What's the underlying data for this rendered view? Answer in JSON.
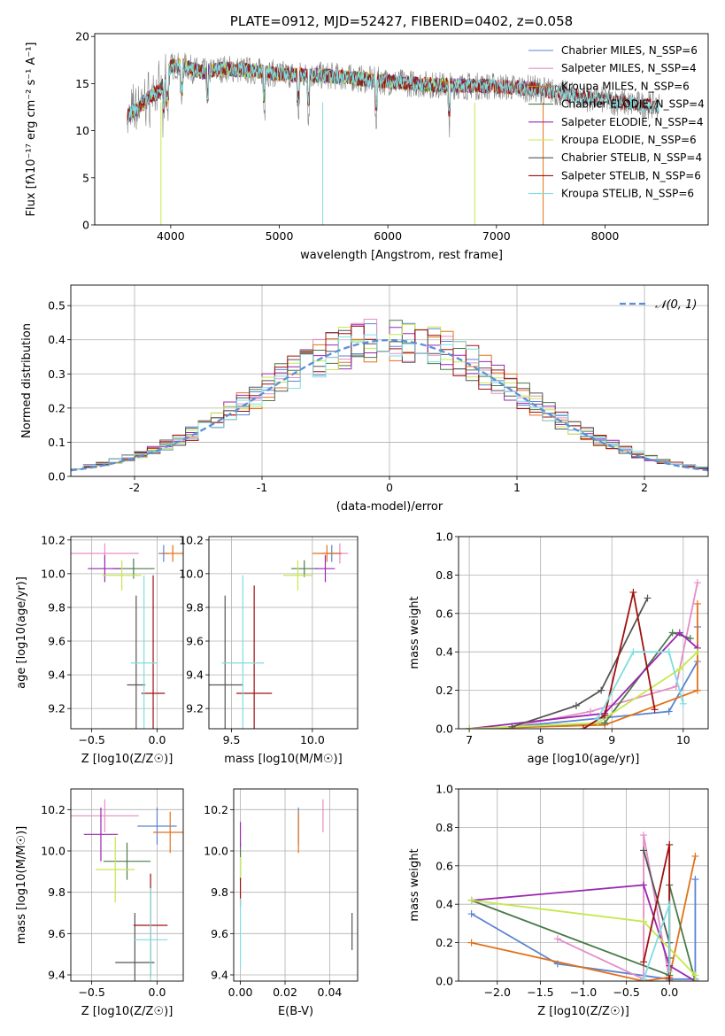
{
  "chart_data": [
    {
      "type": "line",
      "title": "PLATE=0912, MJD=52427, FIBERID=0402, z=0.058",
      "xlabel": "wavelength [Angstrom, rest frame]",
      "ylabel": "Flux [fλ10⁻¹⁷ erg cm⁻² s⁻¹ A⁻¹]",
      "xlim": [
        3300,
        8950
      ],
      "ylim": [
        0,
        20.3
      ],
      "xticks": [
        4000,
        5000,
        6000,
        7000,
        8000
      ],
      "yticks": [
        0,
        5,
        10,
        15,
        20
      ],
      "grid": false,
      "legend_position": "top-right",
      "continuum": {
        "x": [
          3600,
          3700,
          3800,
          3900,
          4000,
          4100,
          4200,
          4300,
          4500,
          4800,
          5000,
          5500,
          6000,
          6500,
          7000,
          7400,
          7800,
          8200,
          8500
        ],
        "y": [
          11.5,
          12.5,
          13.5,
          14.2,
          16.8,
          17.0,
          16.5,
          16.2,
          16.6,
          16.3,
          16.0,
          15.8,
          15.2,
          14.8,
          14.7,
          14.4,
          13.5,
          12.9,
          12.6
        ]
      },
      "series": [
        {
          "name": "Chabrier MILES, N_SSP=6",
          "color": "#5b84d4",
          "xmin": 3600,
          "xmax": 7400
        },
        {
          "name": "Salpeter MILES, N_SSP=4",
          "color": "#e58ec6",
          "xmin": 3600,
          "xmax": 7400
        },
        {
          "name": "Kroupa MILES, N_SSP=6",
          "color": "#e2721a",
          "xmin": 3600,
          "xmax": 7400
        },
        {
          "name": "Chabrier ELODIE, N_SSP=4",
          "color": "#4c7a4c",
          "xmin": 3600,
          "xmax": 6800
        },
        {
          "name": "Salpeter ELODIE, N_SSP=4",
          "color": "#9b27b0",
          "xmin": 3600,
          "xmax": 6800
        },
        {
          "name": "Kroupa ELODIE, N_SSP=6",
          "color": "#c5e84e",
          "xmin": 3600,
          "xmax": 6800
        },
        {
          "name": "Chabrier STELIB, N_SSP=4",
          "color": "#555555",
          "xmin": 3600,
          "xmax": 8500
        },
        {
          "name": "Salpeter STELIB, N_SSP=6",
          "color": "#a01010",
          "xmin": 3600,
          "xmax": 8500
        },
        {
          "name": "Kroupa STELIB, N_SSP=6",
          "color": "#7fdde0",
          "xmin": 3600,
          "xmax": 8500
        }
      ]
    },
    {
      "type": "histogram",
      "xlabel": "(data-model)/error",
      "ylabel": "Normed distribution",
      "xlim": [
        -2.5,
        2.5
      ],
      "ylim": [
        0,
        0.56
      ],
      "xticks": [
        -2,
        -1,
        0,
        1,
        2
      ],
      "yticks": [
        0.0,
        0.1,
        0.2,
        0.3,
        0.4,
        0.5
      ],
      "grid": true,
      "legend": "𝒩(0, 1)",
      "legend_position": "top-right",
      "normal_curve": {
        "mean": 0,
        "sigma": 1,
        "color": "#5b8fd9"
      },
      "bin_width": 0.1,
      "series_colors": [
        "#5b84d4",
        "#e58ec6",
        "#e2721a",
        "#4c7a4c",
        "#9b27b0",
        "#c5e84e",
        "#555555",
        "#a01010",
        "#7fdde0"
      ]
    },
    {
      "type": "scatter",
      "xlabel": "Z [log10(Z/Z☉)]",
      "ylabel": "age  [log10(age/yr)]",
      "xlim": [
        -0.66,
        0.2
      ],
      "ylim": [
        9.08,
        10.22
      ],
      "xticks": [
        -0.5,
        0.0
      ],
      "xticklabels": [
        "−0.5",
        "0.0"
      ],
      "yticks": [
        9.2,
        9.4,
        9.6,
        9.8,
        10.0,
        10.2
      ],
      "grid": true,
      "points": [
        {
          "x": 0.05,
          "y": 10.12,
          "xerr": 0.04,
          "yerr": 0.05,
          "color": "#5b84d4"
        },
        {
          "x": -0.4,
          "y": 10.12,
          "xerr": 0.26,
          "yerr": 0.06,
          "color": "#e58ec6"
        },
        {
          "x": 0.12,
          "y": 10.12,
          "xerr": 0.08,
          "yerr": 0.05,
          "color": "#e2721a"
        },
        {
          "x": -0.18,
          "y": 10.03,
          "xerr": 0.16,
          "yerr": 0.06,
          "color": "#4c7a4c"
        },
        {
          "x": -0.4,
          "y": 10.03,
          "xerr": 0.13,
          "yerr": 0.08,
          "color": "#9b27b0"
        },
        {
          "x": -0.27,
          "y": 9.99,
          "xerr": 0.15,
          "yerr": 0.09,
          "color": "#c5e84e"
        },
        {
          "x": -0.16,
          "y": 9.34,
          "xerr": 0.07,
          "yerr": 0.53,
          "color": "#555555"
        },
        {
          "x": -0.03,
          "y": 9.29,
          "xerr": 0.09,
          "yerr": 0.7,
          "color": "#a01010"
        },
        {
          "x": -0.1,
          "y": 9.47,
          "xerr": 0.1,
          "yerr": 0.52,
          "color": "#7fdde0"
        }
      ]
    },
    {
      "type": "scatter",
      "xlabel": "mass [log10(M/M☉)]",
      "xlim": [
        9.36,
        10.28
      ],
      "ylim": [
        9.08,
        10.22
      ],
      "xticks": [
        9.5,
        10.0
      ],
      "xticklabels": [
        "9.5",
        "10.0"
      ],
      "yticks": [
        9.2,
        9.4,
        9.6,
        9.8,
        10.0,
        10.2
      ],
      "grid": true,
      "points": [
        {
          "x": 10.12,
          "y": 10.12,
          "xerr": 0.06,
          "yerr": 0.05,
          "color": "#5b84d4"
        },
        {
          "x": 10.17,
          "y": 10.12,
          "xerr": 0.05,
          "yerr": 0.06,
          "color": "#e58ec6"
        },
        {
          "x": 10.09,
          "y": 10.12,
          "xerr": 0.09,
          "yerr": 0.05,
          "color": "#e2721a"
        },
        {
          "x": 9.95,
          "y": 10.03,
          "xerr": 0.08,
          "yerr": 0.05,
          "color": "#4c7a4c"
        },
        {
          "x": 10.08,
          "y": 10.03,
          "xerr": 0.06,
          "yerr": 0.08,
          "color": "#9b27b0"
        },
        {
          "x": 9.91,
          "y": 9.99,
          "xerr": 0.09,
          "yerr": 0.09,
          "color": "#c5e84e"
        },
        {
          "x": 9.46,
          "y": 9.34,
          "xerr": 0.11,
          "yerr": 0.53,
          "color": "#555555"
        },
        {
          "x": 9.64,
          "y": 9.29,
          "xerr": 0.11,
          "yerr": 0.64,
          "color": "#a01010"
        },
        {
          "x": 9.57,
          "y": 9.47,
          "xerr": 0.13,
          "yerr": 0.52,
          "color": "#7fdde0"
        }
      ]
    },
    {
      "type": "line",
      "xlabel": "age  [log10(age/yr)]",
      "ylabel": "mass weight",
      "xlim": [
        6.85,
        10.35
      ],
      "ylim": [
        0,
        1.0
      ],
      "xticks": [
        7,
        8,
        9,
        10
      ],
      "yticks": [
        0.0,
        0.2,
        0.4,
        0.6,
        0.8,
        1.0
      ],
      "grid": true,
      "series": [
        {
          "color": "#5b84d4",
          "x": [
            7.6,
            9.8,
            10.2,
            10.2
          ],
          "y": [
            0.01,
            0.09,
            0.35,
            0.53
          ]
        },
        {
          "color": "#e58ec6",
          "x": [
            7.6,
            8.7,
            9.9,
            10.2
          ],
          "y": [
            0.01,
            0.09,
            0.22,
            0.76
          ]
        },
        {
          "color": "#e2721a",
          "x": [
            7.0,
            8.9,
            10.2,
            10.2
          ],
          "y": [
            0.0,
            0.02,
            0.2,
            0.65
          ]
        },
        {
          "color": "#4c7a4c",
          "x": [
            7.0,
            8.9,
            9.85,
            10.1
          ],
          "y": [
            0.0,
            0.03,
            0.5,
            0.47
          ]
        },
        {
          "color": "#9b27b0",
          "x": [
            7.0,
            8.9,
            9.95,
            10.2
          ],
          "y": [
            0.0,
            0.08,
            0.5,
            0.42
          ]
        },
        {
          "color": "#c5e84e",
          "x": [
            7.0,
            8.8,
            9.95,
            10.2
          ],
          "y": [
            0.0,
            0.03,
            0.31,
            0.4
          ]
        },
        {
          "color": "#555555",
          "x": [
            7.6,
            8.5,
            8.85,
            9.5
          ],
          "y": [
            0.01,
            0.12,
            0.2,
            0.68
          ]
        },
        {
          "color": "#a01010",
          "x": [
            8.6,
            8.9,
            9.3,
            9.6
          ],
          "y": [
            0.0,
            0.07,
            0.71,
            0.1
          ]
        },
        {
          "color": "#7fdde0",
          "x": [
            8.8,
            9.3,
            9.8,
            10.0
          ],
          "y": [
            0.05,
            0.4,
            0.4,
            0.13
          ]
        }
      ]
    },
    {
      "type": "scatter",
      "xlabel": "Z [log10(Z/Z☉)]",
      "ylabel": "mass [log10(M/M☉)]",
      "xlim": [
        -0.66,
        0.2
      ],
      "ylim": [
        9.37,
        10.3
      ],
      "xticks": [
        -0.5,
        0.0
      ],
      "xticklabels": [
        "−0.5",
        "0.0"
      ],
      "yticks": [
        9.4,
        9.6,
        9.8,
        10.0,
        10.2
      ],
      "grid": true,
      "points": [
        {
          "x": 0.0,
          "y": 10.12,
          "xerr": 0.15,
          "yerr": 0.09,
          "color": "#5b84d4"
        },
        {
          "x": -0.4,
          "y": 10.17,
          "xerr": 0.26,
          "yerr": 0.08,
          "color": "#e58ec6"
        },
        {
          "x": 0.1,
          "y": 10.09,
          "xerr": 0.13,
          "yerr": 0.1,
          "color": "#e2721a"
        },
        {
          "x": -0.23,
          "y": 9.95,
          "xerr": 0.18,
          "yerr": 0.09,
          "color": "#4c7a4c"
        },
        {
          "x": -0.43,
          "y": 10.08,
          "xerr": 0.13,
          "yerr": 0.13,
          "color": "#9b27b0"
        },
        {
          "x": -0.32,
          "y": 9.91,
          "xerr": 0.15,
          "yerr": 0.16,
          "color": "#c5e84e"
        },
        {
          "x": -0.17,
          "y": 9.46,
          "xerr": 0.15,
          "yerr": 0.24,
          "color": "#555555"
        },
        {
          "x": -0.05,
          "y": 9.64,
          "xerr": 0.13,
          "yerr": 0.25,
          "color": "#a01010"
        },
        {
          "x": -0.05,
          "y": 9.57,
          "xerr": 0.13,
          "yerr": 0.25,
          "color": "#7fdde0"
        }
      ]
    },
    {
      "type": "scatter",
      "xlabel": "E(B-V)",
      "xlim": [
        -0.003,
        0.0525
      ],
      "ylim": [
        9.37,
        10.3
      ],
      "xticks": [
        0.0,
        0.02,
        0.04
      ],
      "xticklabels": [
        "0.00",
        "0.02",
        "0.04"
      ],
      "yticks": [
        9.4,
        9.6,
        9.8,
        10.0,
        10.2
      ],
      "grid": true,
      "points": [
        {
          "x": 0.026,
          "y": 10.12,
          "yerr": 0.09,
          "color": "#5b84d4"
        },
        {
          "x": 0.037,
          "y": 10.17,
          "yerr": 0.08,
          "color": "#e58ec6"
        },
        {
          "x": 0.026,
          "y": 10.09,
          "yerr": 0.1,
          "color": "#e2721a"
        },
        {
          "x": 0.0,
          "y": 9.95,
          "yerr": 0.09,
          "color": "#4c7a4c"
        },
        {
          "x": 0.0,
          "y": 10.08,
          "yerr": 0.06,
          "color": "#9b27b0"
        },
        {
          "x": 0.0,
          "y": 9.91,
          "yerr": 0.06,
          "color": "#c5e84e"
        },
        {
          "x": 0.05,
          "y": 9.61,
          "yerr": 0.09,
          "color": "#555555"
        },
        {
          "x": 0.0,
          "y": 9.8,
          "yerr": 0.07,
          "color": "#a01010"
        },
        {
          "x": 0.0,
          "y": 9.6,
          "yerr": 0.17,
          "color": "#7fdde0"
        }
      ]
    },
    {
      "type": "line",
      "xlabel": "Z [log10(Z/Z☉)]",
      "ylabel": "mass weight",
      "xlim": [
        -2.45,
        0.45
      ],
      "ylim": [
        0,
        1.0
      ],
      "xticks": [
        -2.0,
        -1.5,
        -1.0,
        -0.5,
        0.0
      ],
      "xticklabels": [
        "−2.0",
        "−1.5",
        "−1.0",
        "−0.5",
        "0.0"
      ],
      "yticks": [
        0.0,
        0.2,
        0.4,
        0.6,
        0.8,
        1.0
      ],
      "grid": true,
      "series": [
        {
          "color": "#5b84d4",
          "x": [
            -2.3,
            -1.3,
            0.0,
            0.3,
            0.3
          ],
          "y": [
            0.35,
            0.09,
            0.01,
            0.01,
            0.53
          ]
        },
        {
          "color": "#e58ec6",
          "x": [
            -1.3,
            -0.3,
            -0.3,
            0.0
          ],
          "y": [
            0.22,
            0.01,
            0.76,
            0.01
          ]
        },
        {
          "color": "#e2721a",
          "x": [
            -2.3,
            -0.3,
            0.0,
            0.3
          ],
          "y": [
            0.2,
            0.0,
            0.02,
            0.65
          ]
        },
        {
          "color": "#4c7a4c",
          "x": [
            -2.3,
            0.0,
            0.0,
            0.3
          ],
          "y": [
            0.42,
            0.03,
            0.5,
            0.0
          ]
        },
        {
          "color": "#9b27b0",
          "x": [
            -2.3,
            -0.3,
            0.0,
            0.3
          ],
          "y": [
            0.42,
            0.5,
            0.08,
            0.0
          ]
        },
        {
          "color": "#c5e84e",
          "x": [
            -2.3,
            -0.3,
            0.3,
            0.3
          ],
          "y": [
            0.42,
            0.31,
            0.03,
            0.0
          ]
        },
        {
          "color": "#555555",
          "x": [
            -0.3,
            0.0,
            0.0,
            0.0
          ],
          "y": [
            0.68,
            0.2,
            0.12,
            0.01
          ]
        },
        {
          "color": "#a01010",
          "x": [
            -0.3,
            0.0,
            0.0
          ],
          "y": [
            0.1,
            0.71,
            0.0
          ]
        },
        {
          "color": "#7fdde0",
          "x": [
            -0.3,
            0.0,
            0.0
          ],
          "y": [
            0.01,
            0.4,
            0.05
          ]
        }
      ]
    }
  ]
}
